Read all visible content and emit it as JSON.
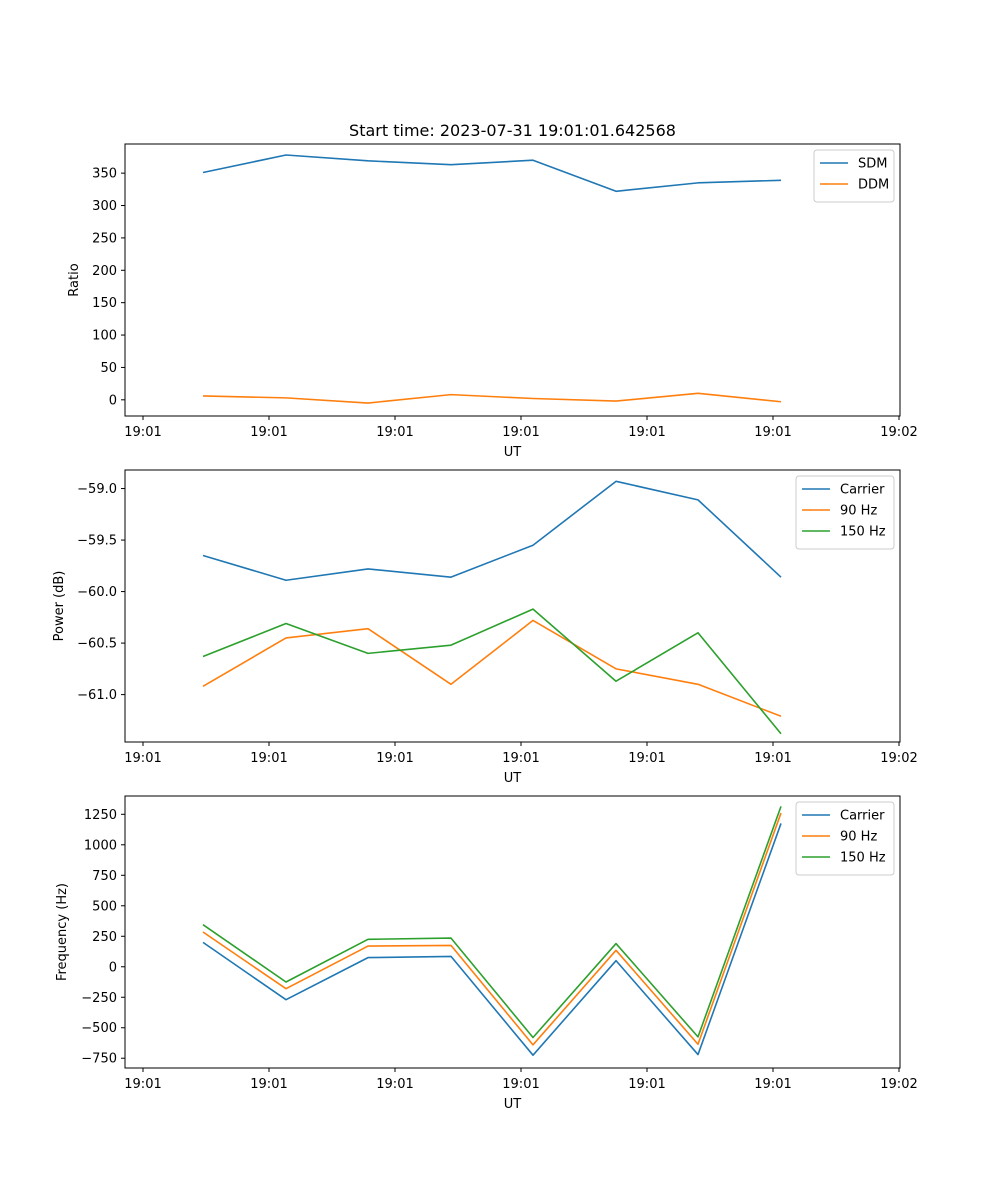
{
  "chart_data": [
    {
      "type": "line",
      "title": "Start time: 2023-07-31 19:01:01.642568",
      "xlabel": "UT",
      "ylabel": "Ratio",
      "x_tick_labels": [
        "19:01",
        "19:01",
        "19:01",
        "19:01",
        "19:01",
        "19:01",
        "19:02"
      ],
      "y_ticks": [
        0,
        50,
        100,
        150,
        200,
        250,
        300,
        350
      ],
      "ylim": [
        -25,
        395
      ],
      "legend": "top-right",
      "series": [
        {
          "name": "SDM",
          "color": "#1f77b4",
          "values": [
            351,
            378,
            369,
            363,
            370,
            322,
            335,
            339
          ]
        },
        {
          "name": "DDM",
          "color": "#ff7f0e",
          "values": [
            6,
            3,
            -5,
            8,
            2,
            -2,
            10,
            -3
          ]
        }
      ]
    },
    {
      "type": "line",
      "title": "",
      "xlabel": "UT",
      "ylabel": "Power (dB)",
      "x_tick_labels": [
        "19:01",
        "19:01",
        "19:01",
        "19:01",
        "19:01",
        "19:01",
        "19:02"
      ],
      "y_ticks": [
        -61.0,
        -60.5,
        -60.0,
        -59.5,
        -59.0
      ],
      "y_tick_labels": [
        "−61.0",
        "−60.5",
        "−60.0",
        "−59.5",
        "−59.0"
      ],
      "ylim": [
        -61.46,
        -58.82
      ],
      "legend": "top-right",
      "series": [
        {
          "name": "Carrier",
          "color": "#1f77b4",
          "values": [
            -59.65,
            -59.89,
            -59.78,
            -59.86,
            -59.55,
            -58.93,
            -59.11,
            -59.86
          ]
        },
        {
          "name": "90 Hz",
          "color": "#ff7f0e",
          "values": [
            -60.92,
            -60.45,
            -60.36,
            -60.9,
            -60.28,
            -60.75,
            -60.9,
            -61.21
          ]
        },
        {
          "name": "150 Hz",
          "color": "#2ca02c",
          "values": [
            -60.63,
            -60.31,
            -60.6,
            -60.52,
            -60.17,
            -60.87,
            -60.4,
            -61.38
          ]
        }
      ]
    },
    {
      "type": "line",
      "title": "",
      "xlabel": "UT",
      "ylabel": "Frequency (Hz)",
      "x_tick_labels": [
        "19:01",
        "19:01",
        "19:01",
        "19:01",
        "19:01",
        "19:01",
        "19:02"
      ],
      "y_ticks": [
        -750,
        -500,
        -250,
        0,
        250,
        500,
        750,
        1000,
        1250
      ],
      "y_tick_labels": [
        "−750",
        "−500",
        "−250",
        "0",
        "250",
        "500",
        "750",
        "1000",
        "1250"
      ],
      "ylim": [
        -830,
        1400
      ],
      "legend": "top-right",
      "series": [
        {
          "name": "Carrier",
          "color": "#1f77b4",
          "values": [
            200,
            -270,
            75,
            85,
            -725,
            50,
            -720,
            1175
          ]
        },
        {
          "name": "90 Hz",
          "color": "#ff7f0e",
          "values": [
            285,
            -180,
            170,
            175,
            -640,
            135,
            -635,
            1260
          ]
        },
        {
          "name": "150 Hz",
          "color": "#2ca02c",
          "values": [
            345,
            -125,
            225,
            235,
            -580,
            190,
            -575,
            1315
          ]
        }
      ]
    }
  ]
}
